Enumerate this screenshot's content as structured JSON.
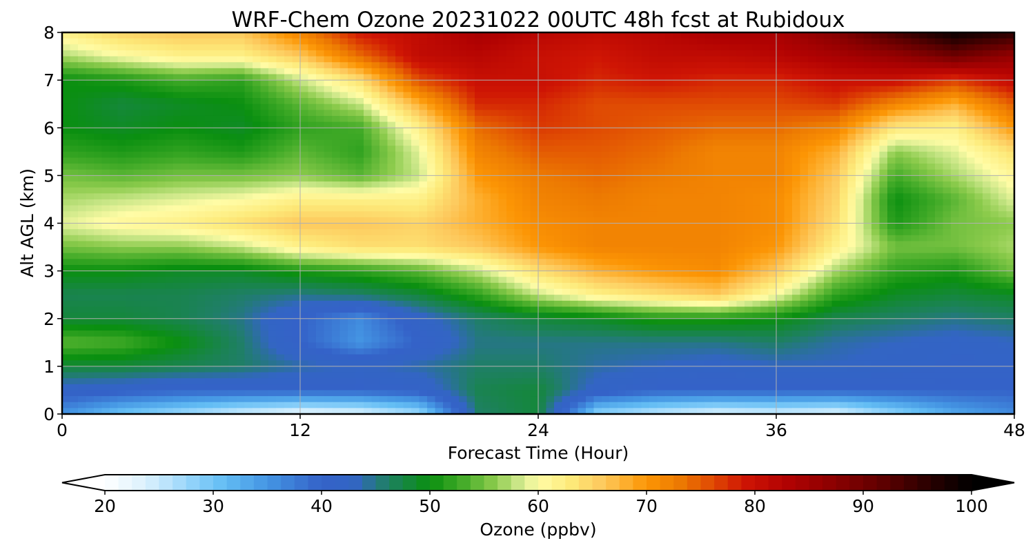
{
  "chart_data": {
    "type": "heatmap",
    "title": "WRF-Chem Ozone  20231022 00UTC 48h fcst at Rubidoux",
    "xlabel": "Forecast Time (Hour)",
    "ylabel": "Alt AGL (km)",
    "xlim": [
      0,
      48
    ],
    "ylim": [
      0,
      8
    ],
    "x_ticks": [
      "0",
      "12",
      "24",
      "36",
      "48"
    ],
    "y_ticks": [
      "0",
      "1",
      "2",
      "3",
      "4",
      "5",
      "6",
      "7",
      "8"
    ],
    "grid": true,
    "colorbar": {
      "label": "Ozone  (ppbv)",
      "min": 20,
      "max": 100,
      "extend": "both",
      "ticks": [
        "20",
        "30",
        "40",
        "50",
        "60",
        "70",
        "80",
        "90",
        "100"
      ]
    },
    "x": [
      0,
      3,
      6,
      9,
      12,
      15,
      18,
      21,
      24,
      27,
      30,
      33,
      36,
      39,
      42,
      45,
      48
    ],
    "y": [
      0,
      0.5,
      1,
      1.5,
      2,
      2.5,
      3,
      3.5,
      4,
      4.5,
      5,
      5.5,
      6,
      6.5,
      7,
      7.5,
      8
    ],
    "z": [
      [
        35,
        30,
        27,
        24,
        22,
        23,
        27,
        46,
        48,
        28,
        25,
        23,
        24,
        23,
        28,
        33,
        36
      ],
      [
        42,
        41,
        40,
        40,
        40,
        40,
        41,
        47,
        48,
        42,
        40,
        40,
        40,
        40,
        40,
        40,
        40
      ],
      [
        48,
        48,
        47,
        46,
        44,
        43,
        44,
        46,
        46,
        44,
        43,
        42,
        43,
        43,
        42,
        41,
        41
      ],
      [
        54,
        53,
        50,
        46,
        40,
        35,
        40,
        45,
        45,
        45,
        45,
        45,
        46,
        44,
        43,
        42,
        43
      ],
      [
        48,
        48,
        47,
        45,
        40,
        36,
        42,
        46,
        48,
        49,
        51,
        51,
        50,
        47,
        46,
        45,
        46
      ],
      [
        47,
        47,
        47,
        46,
        45,
        46,
        48,
        52,
        58,
        62,
        64,
        66,
        60,
        52,
        49,
        48,
        49
      ],
      [
        50,
        50,
        49,
        49,
        51,
        52,
        54,
        58,
        64,
        68,
        70,
        71,
        66,
        57,
        52,
        51,
        55
      ],
      [
        55,
        56,
        56,
        58,
        62,
        64,
        64,
        66,
        70,
        72,
        72,
        72,
        70,
        62,
        55,
        55,
        57
      ],
      [
        59,
        61,
        62,
        64,
        66,
        66,
        65,
        68,
        71,
        72,
        72,
        72,
        71,
        64,
        51,
        55,
        56
      ],
      [
        57,
        58,
        59,
        60,
        62,
        62,
        62,
        68,
        72,
        73,
        72,
        72,
        71,
        65,
        50,
        54,
        59
      ],
      [
        55,
        54,
        55,
        55,
        56,
        54,
        58,
        70,
        73,
        74,
        73,
        72,
        72,
        66,
        53,
        57,
        61
      ],
      [
        52,
        51,
        52,
        51,
        54,
        52,
        59,
        72,
        75,
        75,
        74,
        72,
        72,
        68,
        56,
        59,
        64
      ],
      [
        50,
        49,
        50,
        49,
        52,
        53,
        62,
        74,
        77,
        76,
        75,
        74,
        74,
        72,
        63,
        62,
        70
      ],
      [
        50,
        48,
        49,
        50,
        54,
        58,
        68,
        78,
        78,
        76,
        76,
        76,
        76,
        77,
        72,
        68,
        75
      ],
      [
        50,
        51,
        53,
        52,
        58,
        64,
        76,
        80,
        80,
        78,
        79,
        78,
        78,
        80,
        80,
        77,
        81
      ],
      [
        57,
        60,
        62,
        62,
        66,
        74,
        81,
        82,
        80,
        79,
        81,
        81,
        82,
        84,
        86,
        90,
        86
      ],
      [
        62,
        65,
        66,
        66,
        72,
        79,
        81,
        84,
        82,
        81,
        82,
        84,
        84,
        88,
        94,
        99,
        96
      ]
    ]
  },
  "colors": {
    "stops": [
      [
        20,
        "#ffffff"
      ],
      [
        24,
        "#d8f0fd"
      ],
      [
        28,
        "#92d3fa"
      ],
      [
        31,
        "#63bdf4"
      ],
      [
        35,
        "#4495e3"
      ],
      [
        40,
        "#3462c8"
      ],
      [
        43,
        "#3365c4"
      ],
      [
        46,
        "#1f7f66"
      ],
      [
        50,
        "#0a8f10"
      ],
      [
        53,
        "#43ab28"
      ],
      [
        56,
        "#8ccb4c"
      ],
      [
        58,
        "#c6e585"
      ],
      [
        60,
        "#fffca6"
      ],
      [
        63,
        "#fdea7a"
      ],
      [
        66,
        "#fdc85c"
      ],
      [
        68,
        "#fdb030"
      ],
      [
        70,
        "#fc9504"
      ],
      [
        73,
        "#ed7b02"
      ],
      [
        76,
        "#e04b03"
      ],
      [
        79,
        "#cf1504"
      ],
      [
        83,
        "#b10202"
      ],
      [
        87,
        "#8e0101"
      ],
      [
        92,
        "#5c0000"
      ],
      [
        96,
        "#2a0000"
      ],
      [
        100,
        "#000000"
      ]
    ],
    "under": "#ffffff",
    "over": "#000000",
    "grid": "#b0b0b0"
  }
}
